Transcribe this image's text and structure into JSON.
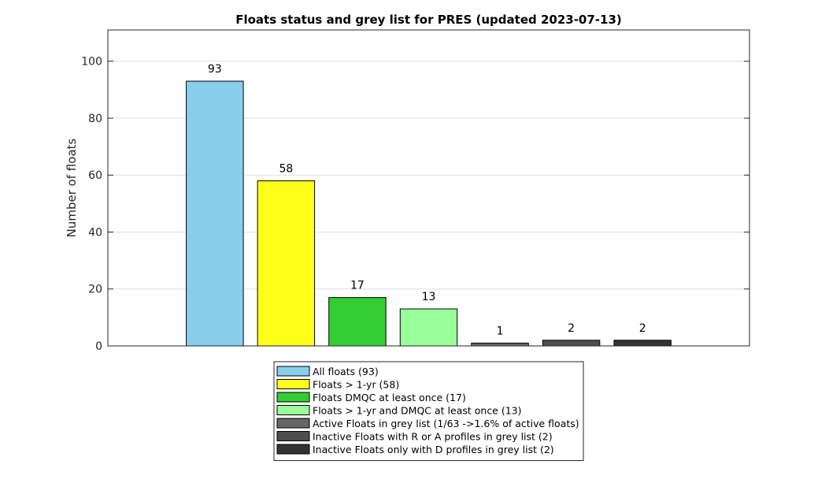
{
  "chart_data": {
    "type": "bar",
    "title": "Floats status and grey list for PRES (updated 2023-07-13)",
    "xlabel": "",
    "ylabel": "Number of floats",
    "ylim": [
      0,
      111
    ],
    "yticks": [
      0,
      20,
      40,
      60,
      80,
      100
    ],
    "grid": "y",
    "legend_position": "bottom-center",
    "categories": [
      "All floats (93)",
      "Floats > 1-yr (58)",
      "Floats DMQC at least once (17)",
      "Floats > 1-yr and DMQC at least once (13)",
      "Active Floats in grey list (1/63 ->1.6% of active floats)",
      "Inactive Floats with R or A profiles in grey list (2)",
      "Inactive Floats only with D profiles in grey list (2)"
    ],
    "values": [
      93,
      58,
      17,
      13,
      1,
      2,
      2
    ],
    "colors": [
      "#87ceeb",
      "#ffff1a",
      "#33cc33",
      "#99ff99",
      "#666666",
      "#4d4d4d",
      "#333333"
    ]
  }
}
